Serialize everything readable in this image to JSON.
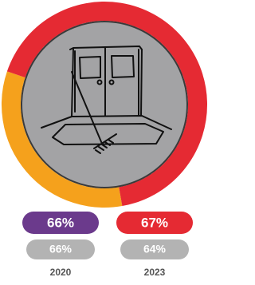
{
  "ring": {
    "value": 67,
    "color": "#e52a33",
    "rest_color": "#f5a11c"
  },
  "columns": [
    {
      "main": "66%",
      "sub": "66%",
      "year": "2020",
      "color": "#6b3a8c"
    },
    {
      "main": "67%",
      "sub": "64%",
      "year": "2023",
      "color": "#e52a33"
    }
  ]
}
